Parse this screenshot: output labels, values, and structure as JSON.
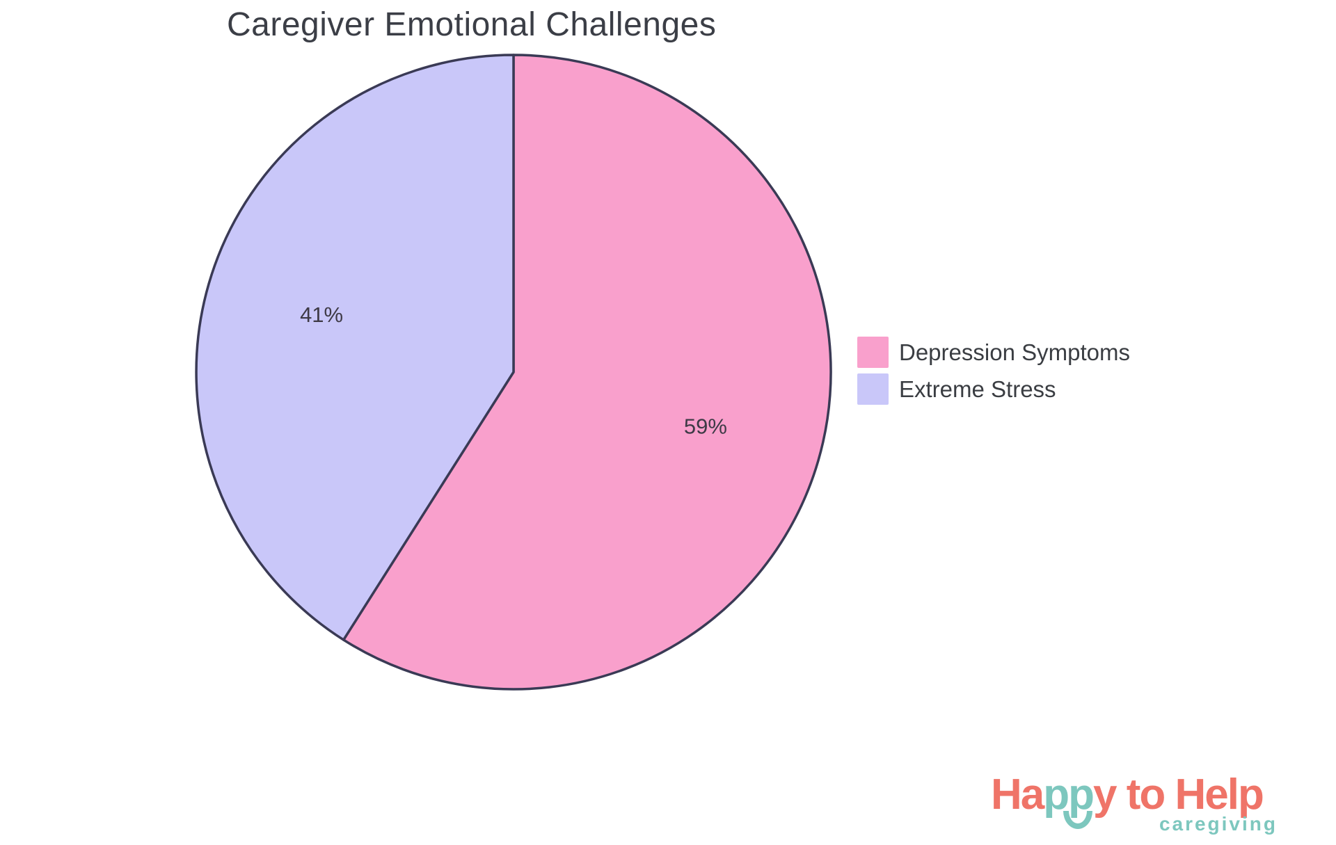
{
  "chart_data": {
    "type": "pie",
    "title": "Caregiver Emotional Challenges",
    "slices": [
      {
        "label": "Depression Symptoms",
        "value": 59,
        "percent_label": "59%",
        "color": "#F9A0CC"
      },
      {
        "label": "Extreme Stress",
        "value": 41,
        "percent_label": "41%",
        "color": "#C9C7F9"
      }
    ],
    "slice_border_color": "#3A3A55",
    "slice_border_width": 3.5,
    "start": "top",
    "direction": "clockwise",
    "legend_position": "right",
    "grid": false
  },
  "logo": {
    "part1": "Ha",
    "part2": "pp",
    "part3": "y to Help",
    "subtext": "caregiving"
  },
  "theme": {
    "coral": "#EF7468",
    "teal": "#7DC7BE",
    "title_text": "#3B3E46",
    "legend_text": "#3A3D42",
    "percent_text": "#3E3A46",
    "pie_border": "#3A3A55",
    "background": "#FFFFFF"
  }
}
